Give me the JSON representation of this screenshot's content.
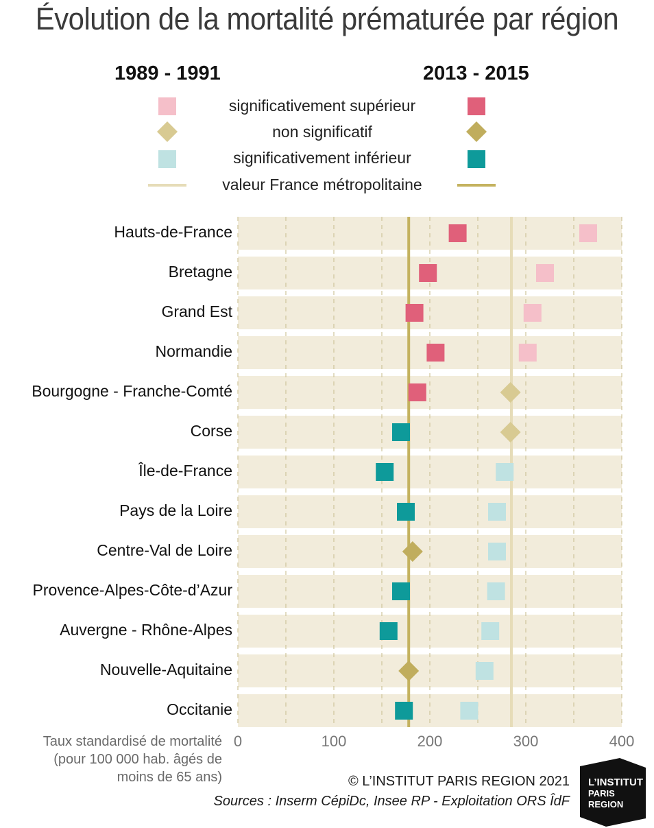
{
  "title": "Évolution de la mortalité prématurée par région",
  "legend": {
    "period_1": "1989 - 1991",
    "period_2": "2013 - 2015",
    "items": [
      {
        "label": "significativement supérieur",
        "shape": "square",
        "color_1": "#f5bfc9",
        "color_2": "#e0607a"
      },
      {
        "label": "non significatif",
        "shape": "diamond",
        "color_1": "#d8ca92",
        "color_2": "#c0ad5d"
      },
      {
        "label": "significativement inférieur",
        "shape": "square",
        "color_1": "#bfe2e2",
        "color_2": "#0e9a9a"
      },
      {
        "label": "valeur France métropolitaine",
        "shape": "line",
        "color_1": "#e6dcb8",
        "color_2": "#c4b25f"
      }
    ]
  },
  "chart_data": {
    "type": "scatter",
    "title": "Évolution de la mortalité prématurée par région",
    "xlabel": "Taux standardisé de mortalité (pour 100 000 hab. âgés de moins de 65 ans)",
    "xlim": [
      0,
      400
    ],
    "xticks": [
      "0",
      "100",
      "200",
      "300",
      "400"
    ],
    "grid": true,
    "reference_values": {
      "1989 - 1991": 285,
      "2013 - 2015": 178
    },
    "categories": [
      "Hauts-de-France",
      "Bretagne",
      "Grand Est",
      "Normandie",
      "Bourgogne - Franche-Comté",
      "Corse",
      "Île-de-France",
      "Pays de la Loire",
      "Centre-Val de Loire",
      "Provence-Alpes-Côte-d’Azur",
      "Auvergne - Rhône-Alpes",
      "Nouvelle-Aquitaine",
      "Occitanie"
    ],
    "series": [
      {
        "name": "1989 - 1991",
        "values": [
          365,
          320,
          307,
          302,
          284,
          284,
          278,
          270,
          270,
          269,
          263,
          257,
          241
        ],
        "status": [
          "sup",
          "sup",
          "sup",
          "sup",
          "ns",
          "ns",
          "inf",
          "inf",
          "inf",
          "inf",
          "inf",
          "inf",
          "inf"
        ]
      },
      {
        "name": "2013 - 2015",
        "values": [
          229,
          198,
          184,
          206,
          187,
          170,
          153,
          175,
          182,
          170,
          157,
          178,
          173
        ],
        "status": [
          "sup",
          "sup",
          "sup",
          "sup",
          "sup",
          "inf",
          "inf",
          "inf",
          "ns",
          "inf",
          "inf",
          "ns",
          "inf"
        ]
      }
    ]
  },
  "footer": {
    "credit": "© L’INSTITUT PARIS REGION 2021",
    "sources": "Sources : Inserm CépiDc, Insee RP - Exploitation ORS ÎdF",
    "logo_line1": "L’INSTITUT",
    "logo_line2": "PARIS",
    "logo_line3": "REGION"
  },
  "colors": {
    "band": "#f2ecdb",
    "grid": "#cfc59a",
    "sup_old": "#f5bfc9",
    "sup_new": "#e0607a",
    "ns_old": "#d8ca92",
    "ns_new": "#c0ad5d",
    "inf_old": "#bfe2e2",
    "inf_new": "#0e9a9a",
    "ref_old": "#e6dcb8",
    "ref_new": "#c4b25f"
  }
}
